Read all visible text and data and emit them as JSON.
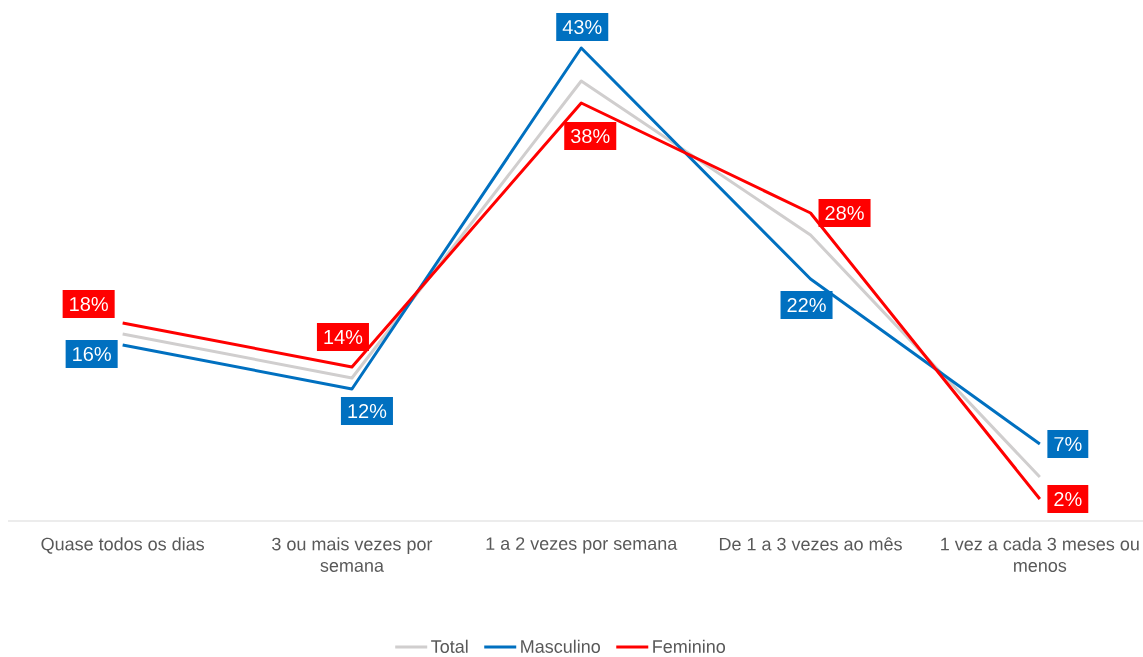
{
  "chart_data": {
    "type": "line",
    "categories": [
      "Quase todos os dias",
      "3 ou mais vezes por semana",
      "1 a 2 vezes por semana",
      "De 1 a 3 vezes ao mês",
      "1 vez a cada 3 meses ou menos"
    ],
    "series": [
      {
        "name": "Total",
        "color": "#d0cece",
        "values": [
          17,
          13,
          40,
          26,
          4
        ]
      },
      {
        "name": "Masculino",
        "color": "#0070c0",
        "values": [
          16,
          12,
          43,
          22,
          7
        ],
        "value_labels": [
          "16%",
          "12%",
          "43%",
          "22%",
          "7%"
        ]
      },
      {
        "name": "Feminino",
        "color": "#ff0000",
        "values": [
          18,
          14,
          38,
          28,
          2
        ],
        "value_labels": [
          "18%",
          "14%",
          "38%",
          "28%",
          "2%"
        ]
      }
    ],
    "legend": "bottom"
  }
}
